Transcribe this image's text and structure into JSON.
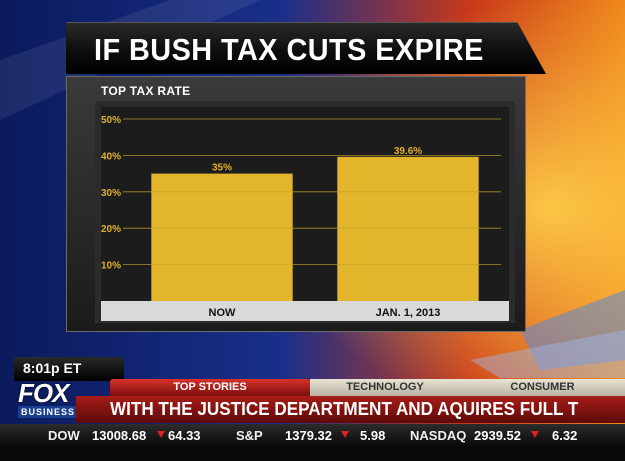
{
  "title": "IF BUSH TAX CUTS EXPIRE",
  "chart_data": {
    "type": "bar",
    "title": "IF BUSH TAX CUTS EXPIRE",
    "subtitle": "TOP TAX RATE",
    "categories": [
      "NOW",
      "JAN. 1, 2013"
    ],
    "values": [
      35,
      39.6
    ],
    "data_labels": [
      "35%",
      "39.6%"
    ],
    "y_ticks": [
      10,
      20,
      30,
      40,
      50
    ],
    "y_tick_labels": [
      "10%",
      "20%",
      "30%",
      "40%",
      "50%"
    ],
    "ylim": [
      0,
      50
    ],
    "grid": true,
    "xlabel": "",
    "ylabel": "",
    "bar_color": "#e2b52a",
    "grid_color": "#c9a42a",
    "tick_label_color": "#e0b12a"
  },
  "ticker": {
    "time": "8:01p ET",
    "logo_text": "FOX",
    "logo_sub": "BUSINESS",
    "tabs": [
      "TOP STORIES",
      "TECHNOLOGY",
      "CONSUMER"
    ],
    "headline": "WITH THE JUSTICE DEPARTMENT AND AQUIRES FULL T",
    "markets": [
      {
        "name": "DOW",
        "value": "13008.68",
        "change": "64.33"
      },
      {
        "name": "S&P",
        "value": "1379.32",
        "change": "5.98"
      },
      {
        "name": "NASDAQ",
        "value": "2939.52",
        "change": "6.32"
      }
    ]
  }
}
